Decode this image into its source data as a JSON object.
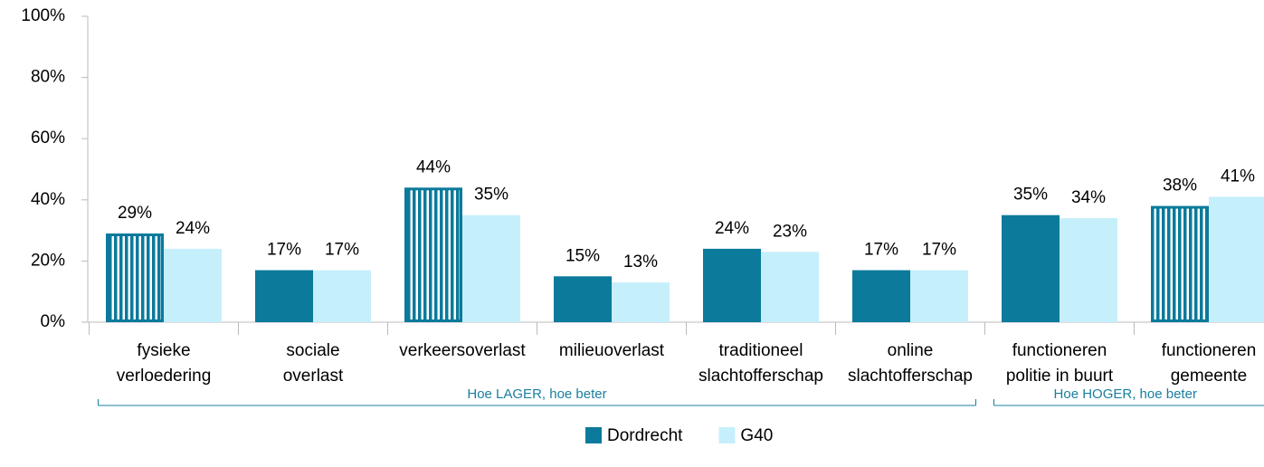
{
  "chart_data": {
    "type": "bar",
    "categories": [
      [
        "fysieke",
        "verloedering"
      ],
      [
        "sociale",
        "overlast"
      ],
      [
        "verkeersoverlast"
      ],
      [
        "milieuoverlast"
      ],
      [
        "traditioneel",
        "slachtofferschap"
      ],
      [
        "online",
        "slachtofferschap"
      ],
      [
        "functioneren",
        "politie in buurt"
      ],
      [
        "functioneren",
        "gemeente"
      ]
    ],
    "series": [
      {
        "name": "Dordrecht",
        "color": "#0b7a9b",
        "values": [
          29,
          17,
          44,
          15,
          24,
          17,
          35,
          38
        ],
        "value_labels": [
          "29%",
          "17%",
          "44%",
          "15%",
          "24%",
          "17%",
          "35%",
          "38%"
        ],
        "hatched": [
          true,
          false,
          true,
          false,
          false,
          false,
          false,
          true
        ]
      },
      {
        "name": "G40",
        "color": "#c6effc",
        "values": [
          24,
          17,
          35,
          13,
          23,
          17,
          34,
          41
        ],
        "value_labels": [
          "24%",
          "17%",
          "35%",
          "13%",
          "23%",
          "17%",
          "34%",
          "41%"
        ]
      }
    ],
    "ylim": [
      0,
      100
    ],
    "yticks": [
      {
        "value": 0,
        "label": "0%"
      },
      {
        "value": 20,
        "label": "20%"
      },
      {
        "value": 40,
        "label": "40%"
      },
      {
        "value": 60,
        "label": "60%"
      },
      {
        "value": 80,
        "label": "80%"
      },
      {
        "value": 100,
        "label": "100%"
      }
    ],
    "annotations": [
      "Hoe LAGER, hoe beter",
      "Hoe HOGER, hoe beter"
    ],
    "legend": "bottom"
  }
}
